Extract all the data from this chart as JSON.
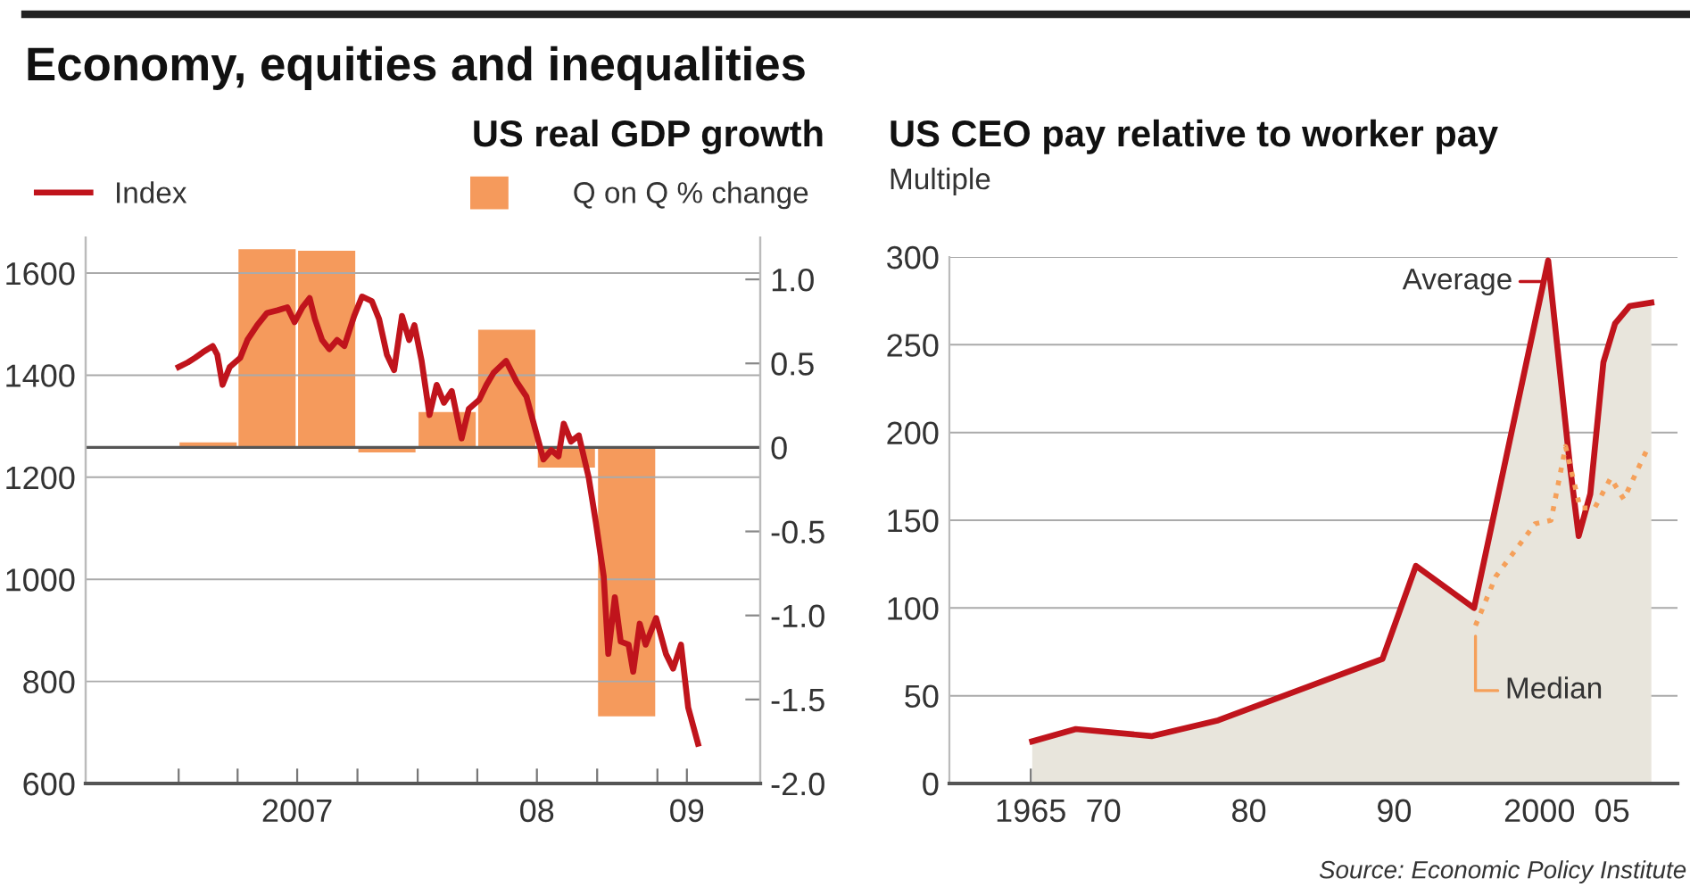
{
  "chart_data": [
    {
      "type": "line",
      "title": "Economy, equities and inequalities",
      "subtitle": "US real GDP growth",
      "xlim": [
        "2006-08-12",
        "2009-06-07"
      ],
      "xticks": [
        {
          "value": "2007-01-01",
          "label": null
        },
        {
          "value": "2007-04-01",
          "label": null
        },
        {
          "value": "2007-07-01",
          "label": "2007"
        },
        {
          "value": "2007-10-01",
          "label": null
        },
        {
          "value": "2008-01-01",
          "label": null
        },
        {
          "value": "2008-04-01",
          "label": null
        },
        {
          "value": "2008-07-01",
          "label": "08"
        },
        {
          "value": "2008-10-01",
          "label": null
        },
        {
          "value": "2009-01-01",
          "label": null
        },
        {
          "value": "2009-02-15",
          "label": "09"
        }
      ],
      "ylim": [
        600,
        1670
      ],
      "yticks": [
        600,
        800,
        1000,
        1200,
        1400,
        1600
      ],
      "y2lim": [
        -2.0,
        1.25
      ],
      "y2ticks": [
        {
          "value": -2.0,
          "label": "-2.0"
        },
        {
          "value": -1.5,
          "label": "-1.5"
        },
        {
          "value": -1.0,
          "label": "-1.0"
        },
        {
          "value": -0.5,
          "label": "-0.5"
        },
        0,
        0.5,
        {
          "value": 1.0,
          "label": "1.0"
        }
      ],
      "grid": "y",
      "legend": "top",
      "ref_lines": [
        {
          "axis": "y2",
          "value": 0,
          "color": "#555555"
        }
      ],
      "series": [
        {
          "name": "Q on Q % change",
          "type": "bar",
          "axis": "y2",
          "color": "#f59a5c",
          "x": [
            "2007-02-15",
            "2007-05-16",
            "2007-08-15",
            "2007-11-15",
            "2008-02-15",
            "2008-05-16",
            "2008-08-15",
            "2008-11-15"
          ],
          "values": [
            0.03,
            1.18,
            1.17,
            -0.03,
            0.21,
            0.7,
            -0.12,
            -1.6
          ]
        },
        {
          "name": "Index",
          "color": "#c0141c",
          "line_style": "solid",
          "x": [
            "2007-01-01",
            "2007-01-15",
            "2007-01-26",
            "2007-02-07",
            "2007-02-22",
            "2007-03-01",
            "2007-03-09",
            "2007-03-20",
            "2007-04-05",
            "2007-04-16",
            "2007-05-01",
            "2007-05-16",
            "2007-06-01",
            "2007-06-16",
            "2007-06-27",
            "2007-07-09",
            "2007-07-20",
            "2007-07-28",
            "2007-08-08",
            "2007-08-19",
            "2007-08-31",
            "2007-09-11",
            "2007-09-26",
            "2007-10-08",
            "2007-10-23",
            "2007-11-03",
            "2007-11-15",
            "2007-11-26",
            "2007-12-08",
            "2007-12-19",
            "2007-12-27",
            "2008-01-07",
            "2008-01-19",
            "2008-01-30",
            "2008-02-10",
            "2008-02-22",
            "2008-03-08",
            "2008-03-19",
            "2008-04-04",
            "2008-04-15",
            "2008-04-26",
            "2008-05-15",
            "2008-05-31",
            "2008-06-15",
            "2008-06-30",
            "2008-07-11",
            "2008-07-23",
            "2008-08-03",
            "2008-08-11",
            "2008-08-22",
            "2008-09-03",
            "2008-09-18",
            "2008-09-29",
            "2008-10-11",
            "2008-10-18",
            "2008-10-28",
            "2008-11-06",
            "2008-11-18",
            "2008-11-25",
            "2008-12-05",
            "2008-12-14",
            "2008-12-30",
            "2009-01-14",
            "2009-01-25",
            "2009-02-06",
            "2009-02-17",
            "2009-03-04"
          ],
          "values": [
            1416,
            1425,
            1434,
            1445,
            1457,
            1440,
            1381,
            1416,
            1434,
            1469,
            1498,
            1522,
            1527,
            1533,
            1504,
            1533,
            1551,
            1510,
            1469,
            1451,
            1469,
            1457,
            1516,
            1554,
            1545,
            1510,
            1440,
            1410,
            1516,
            1469,
            1498,
            1428,
            1322,
            1381,
            1346,
            1369,
            1276,
            1334,
            1352,
            1381,
            1405,
            1428,
            1387,
            1358,
            1287,
            1235,
            1253,
            1241,
            1305,
            1270,
            1282,
            1200,
            1112,
            1006,
            854,
            965,
            878,
            872,
            819,
            913,
            872,
            924,
            854,
            825,
            872,
            749,
            678
          ]
        }
      ]
    },
    {
      "type": "area",
      "title": "US CEO pay relative to worker pay",
      "ylabel": "Multiple",
      "xlim": [
        1959.4,
        2009.5
      ],
      "xticks": [
        1965,
        {
          "value": 1970,
          "label": "70"
        },
        {
          "value": 1975,
          "label": null
        },
        {
          "value": 1980,
          "label": "80"
        },
        {
          "value": 1985,
          "label": null
        },
        {
          "value": 1990,
          "label": "90"
        },
        {
          "value": 1995,
          "label": null
        },
        2000,
        {
          "value": 2005,
          "label": "05"
        }
      ],
      "ylim": [
        0,
        300
      ],
      "yticks": [
        0,
        50,
        100,
        150,
        200,
        250,
        300
      ],
      "grid": "y",
      "annotations": [
        "Source: Economic Policy Institute"
      ],
      "series": [
        {
          "name": "Average",
          "color": "#c0141c",
          "line_style": "solid",
          "x": [
            1965.1,
            1968.1,
            1973.3,
            1977.9,
            1989.2,
            1991.5,
            1995.5,
            2000.6,
            2002.1,
            2002.7,
            2003.5,
            2004.4,
            2005.2,
            2006.2,
            2007.7
          ],
          "values": [
            24,
            31,
            27,
            36,
            71,
            124,
            100,
            298,
            181,
            141,
            165,
            240,
            262,
            272,
            274
          ]
        },
        {
          "name": "Median",
          "type": "line",
          "color": "#f5a05a",
          "line_style": "dotted",
          "x": [
            1995.6,
            1997.0,
            1999.7,
            2000.8,
            2001.8,
            2002.8,
            2003.8,
            2004.9,
            2005.8,
            2007.5
          ],
          "values": [
            90,
            118,
            148,
            150,
            192,
            157,
            157,
            174,
            162,
            192
          ]
        }
      ]
    }
  ]
}
